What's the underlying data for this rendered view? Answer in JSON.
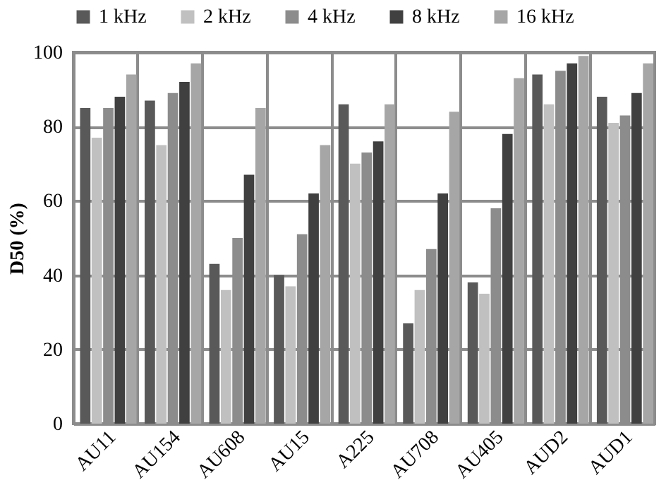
{
  "chart_data": {
    "type": "bar",
    "ylabel": "D50 (%)",
    "categories": [
      "AU11",
      "AU154",
      "AU608",
      "AU15",
      "A225",
      "AU708",
      "AU405",
      "AUD2",
      "AUD1"
    ],
    "series": [
      {
        "name": "1 kHz",
        "color": "#595959",
        "values": [
          85,
          87,
          43,
          40,
          86,
          27,
          38,
          94,
          88
        ]
      },
      {
        "name": "2 kHz",
        "color": "#c0c0c0",
        "values": [
          77,
          75,
          36,
          37,
          70,
          36,
          35,
          86,
          81
        ]
      },
      {
        "name": "4 kHz",
        "color": "#8c8c8c",
        "values": [
          85,
          89,
          50,
          51,
          73,
          47,
          58,
          95,
          83
        ]
      },
      {
        "name": "8 kHz",
        "color": "#404040",
        "values": [
          88,
          92,
          67,
          62,
          76,
          62,
          78,
          97,
          89
        ]
      },
      {
        "name": "16 kHz",
        "color": "#a6a6a6",
        "values": [
          94,
          97,
          85,
          75,
          86,
          84,
          93,
          99,
          97
        ]
      }
    ],
    "ylim": [
      0,
      100
    ],
    "yticks": [
      0,
      20,
      40,
      60,
      80,
      100
    ],
    "grid": true,
    "legend": "top"
  }
}
